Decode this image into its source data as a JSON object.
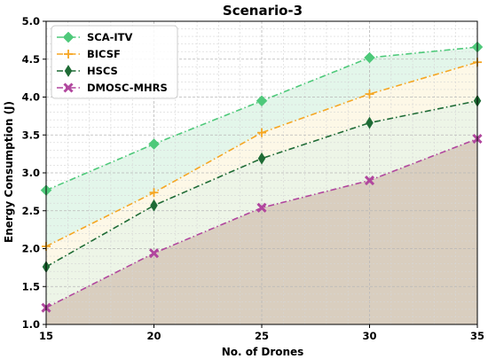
{
  "chart_data": {
    "type": "line",
    "title": "Scenario-3",
    "xlabel": "No. of Drones",
    "ylabel": "Energy Consumption (J)",
    "x": [
      15,
      20,
      25,
      30,
      35
    ],
    "xlim": [
      15,
      35
    ],
    "ylim": [
      1.0,
      5.0
    ],
    "xticks": [
      15,
      20,
      25,
      30,
      35
    ],
    "yticks": [
      1.0,
      1.5,
      2.0,
      2.5,
      3.0,
      3.5,
      4.0,
      4.5,
      5.0
    ],
    "grid": true,
    "legend_position": "top-left",
    "series": [
      {
        "name": "SCA-ITV",
        "values": [
          2.77,
          3.38,
          3.95,
          4.52,
          4.66
        ],
        "color": "#4ec97a",
        "marker": "diamond",
        "fill": "#4ec97a"
      },
      {
        "name": "BICSF",
        "values": [
          2.03,
          2.74,
          3.53,
          4.04,
          4.46
        ],
        "color": "#f5a623",
        "marker": "plus",
        "fill": "#f2d36b"
      },
      {
        "name": "HSCS",
        "values": [
          1.76,
          2.57,
          3.19,
          3.66,
          3.95
        ],
        "color": "#1e6b35",
        "marker": "thin-diamond",
        "fill": "#8fbf6a"
      },
      {
        "name": "DMOSC-MHRS",
        "values": [
          1.22,
          1.94,
          2.54,
          2.9,
          3.45
        ],
        "color": "#b1479e",
        "marker": "x",
        "fill": "#b9a58a"
      }
    ]
  }
}
